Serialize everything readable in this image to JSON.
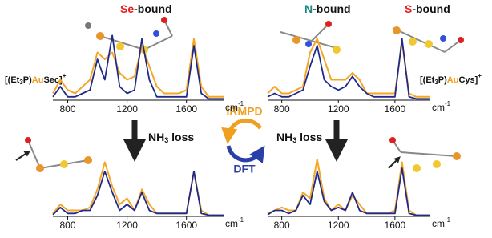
{
  "labels": {
    "se_bound": {
      "atom": "Se",
      "rest": "-bound"
    },
    "n_bound": {
      "atom": "N",
      "rest": "-bound"
    },
    "s_bound": {
      "atom": "S",
      "rest": "-bound"
    },
    "aisec": [
      "[(Et",
      "3",
      "P)",
      "Au",
      "Sec]",
      "+"
    ],
    "aucys": [
      "[(Et",
      "3",
      "P)",
      "Au",
      "Cys]",
      "+"
    ],
    "loss_left": [
      "NH",
      "3",
      " loss"
    ],
    "loss_right": [
      "NH",
      "3",
      " loss"
    ],
    "irmpd": "IRMPD",
    "dft": "DFT"
  },
  "chart_data": [
    {
      "type": "line",
      "xlabel": {
        "base": "cm",
        "sup": "-1"
      },
      "xlim": [
        700,
        1850
      ],
      "xticks": [
        800,
        1200,
        1600
      ],
      "ylim": [
        0,
        1
      ],
      "x": [
        700,
        750,
        800,
        850,
        900,
        950,
        1000,
        1050,
        1100,
        1150,
        1200,
        1250,
        1300,
        1350,
        1400,
        1450,
        1500,
        1550,
        1600,
        1650,
        1700,
        1750,
        1800,
        1850
      ],
      "series": [
        {
          "color": "#f5a623",
          "values": [
            0.1,
            0.3,
            0.15,
            0.1,
            0.2,
            0.3,
            0.7,
            0.6,
            0.7,
            0.4,
            0.3,
            0.35,
            0.8,
            0.5,
            0.2,
            0.1,
            0.1,
            0.1,
            0.15,
            0.9,
            0.2,
            0.05,
            0.05,
            0.05
          ]
        },
        {
          "color": "#1f2a8c",
          "values": [
            0.05,
            0.2,
            0.05,
            0.05,
            0.1,
            0.15,
            0.6,
            0.3,
            0.95,
            0.2,
            0.1,
            0.15,
            0.9,
            0.3,
            0.05,
            0.05,
            0.05,
            0.05,
            0.05,
            0.8,
            0.1,
            0.02,
            0.02,
            0.02
          ]
        }
      ]
    },
    {
      "type": "line",
      "xlabel": {
        "base": "cm",
        "sup": "-1"
      },
      "xlim": [
        700,
        1850
      ],
      "xticks": [
        800,
        1200,
        1600
      ],
      "ylim": [
        0,
        1
      ],
      "x": [
        700,
        750,
        800,
        850,
        900,
        950,
        1000,
        1050,
        1100,
        1150,
        1200,
        1250,
        1300,
        1350,
        1400,
        1450,
        1500,
        1550,
        1600,
        1650,
        1700,
        1750,
        1800,
        1850
      ],
      "series": [
        {
          "color": "#f5a623",
          "values": [
            0.1,
            0.2,
            0.1,
            0.1,
            0.15,
            0.2,
            0.7,
            0.9,
            0.6,
            0.3,
            0.3,
            0.3,
            0.4,
            0.3,
            0.1,
            0.1,
            0.1,
            0.1,
            0.1,
            0.85,
            0.1,
            0.05,
            0.05,
            0.05
          ]
        },
        {
          "color": "#1f2a8c",
          "values": [
            0.05,
            0.1,
            0.05,
            0.05,
            0.1,
            0.15,
            0.5,
            0.8,
            0.3,
            0.2,
            0.15,
            0.2,
            0.35,
            0.2,
            0.1,
            0.05,
            0.05,
            0.05,
            0.05,
            0.9,
            0.05,
            0.02,
            0.02,
            0.02
          ]
        }
      ]
    },
    {
      "type": "line",
      "xlabel": {
        "base": "cm",
        "sup": "-1"
      },
      "xlim": [
        700,
        1850
      ],
      "xticks": [
        800,
        1200,
        1600
      ],
      "ylim": [
        0,
        1
      ],
      "x": [
        700,
        750,
        800,
        850,
        900,
        950,
        1000,
        1050,
        1100,
        1150,
        1200,
        1250,
        1300,
        1350,
        1400,
        1450,
        1500,
        1550,
        1600,
        1650,
        1700,
        1750,
        1800,
        1850
      ],
      "series": [
        {
          "color": "#f5a623",
          "values": [
            0.05,
            0.2,
            0.1,
            0.1,
            0.1,
            0.15,
            0.45,
            0.9,
            0.5,
            0.2,
            0.3,
            0.1,
            0.45,
            0.2,
            0.05,
            0.05,
            0.05,
            0.05,
            0.05,
            0.75,
            0.1,
            0.02,
            0.02,
            0.02
          ]
        },
        {
          "color": "#1f2a8c",
          "values": [
            0.03,
            0.15,
            0.05,
            0.05,
            0.1,
            0.1,
            0.35,
            0.75,
            0.4,
            0.1,
            0.2,
            0.1,
            0.4,
            0.1,
            0.05,
            0.05,
            0.05,
            0.05,
            0.05,
            0.75,
            0.05,
            0.02,
            0.02,
            0.02
          ]
        }
      ]
    },
    {
      "type": "line",
      "xlabel": {
        "base": "cm",
        "sup": "-1"
      },
      "xlim": [
        700,
        1850
      ],
      "xticks": [
        800,
        1200,
        1600
      ],
      "ylim": [
        0,
        1
      ],
      "x": [
        700,
        750,
        800,
        850,
        900,
        950,
        1000,
        1050,
        1100,
        1150,
        1200,
        1250,
        1300,
        1350,
        1400,
        1450,
        1500,
        1550,
        1600,
        1650,
        1700,
        1750,
        1800,
        1850
      ],
      "series": [
        {
          "color": "#f5a623",
          "values": [
            0.05,
            0.1,
            0.15,
            0.1,
            0.1,
            0.4,
            0.3,
            0.95,
            0.3,
            0.1,
            0.2,
            0.1,
            0.35,
            0.2,
            0.05,
            0.05,
            0.05,
            0.05,
            0.1,
            0.9,
            0.1,
            0.02,
            0.02,
            0.02
          ]
        },
        {
          "color": "#1f2a8c",
          "values": [
            0.03,
            0.1,
            0.1,
            0.05,
            0.1,
            0.35,
            0.2,
            0.75,
            0.25,
            0.1,
            0.15,
            0.1,
            0.4,
            0.1,
            0.05,
            0.05,
            0.05,
            0.05,
            0.05,
            0.8,
            0.05,
            0.02,
            0.02,
            0.02
          ]
        }
      ]
    }
  ]
}
